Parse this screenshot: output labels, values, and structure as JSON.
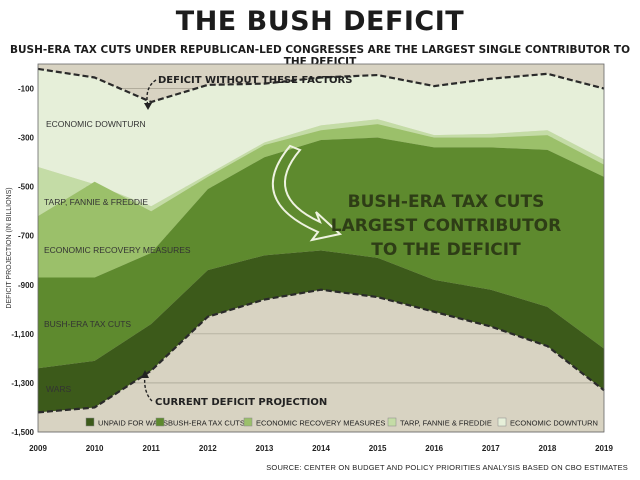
{
  "chart_data": {
    "type": "area",
    "title": "THE BUSH DEFICIT",
    "subtitle": "BUSH-ERA TAX CUTS UNDER REPUBLICAN-LED CONGRESSES ARE THE LARGEST SINGLE CONTRIBUTOR TO THE DEFICIT",
    "ylabel": "DEFICIT PROJECTION (IN BILLIONS)",
    "xlabel": "",
    "x": [
      "2009",
      "2010",
      "2011",
      "2012",
      "2013",
      "2014",
      "2015",
      "2016",
      "2017",
      "2018",
      "2019"
    ],
    "ylim": [
      -1500,
      0
    ],
    "yticks": [
      "-100",
      "-300",
      "-500",
      "-700",
      "-900",
      "-1,100",
      "-1,300",
      "-1,500"
    ],
    "ytick_values": [
      -100,
      -300,
      -500,
      -700,
      -900,
      -1100,
      -1300,
      -1500
    ],
    "xticks": [
      "2009",
      "2010",
      "2011",
      "2012",
      "2013",
      "2014",
      "2015",
      "2016",
      "2017",
      "2018",
      "2019"
    ],
    "boundaries": {
      "without_factors": [
        -20,
        -55,
        -155,
        -85,
        -80,
        -55,
        -45,
        -90,
        -60,
        -40,
        -100
      ],
      "economic_downturn_bottom": [
        -420,
        -490,
        -580,
        -450,
        -320,
        -250,
        -225,
        -290,
        -285,
        -270,
        -390
      ],
      "tarp_bottom": [
        -620,
        -480,
        -600,
        -460,
        -330,
        -270,
        -245,
        -300,
        -300,
        -290,
        -410
      ],
      "recovery_bottom": [
        -870,
        -870,
        -770,
        -510,
        -380,
        -310,
        -300,
        -340,
        -340,
        -350,
        -460
      ],
      "tax_cuts_bottom": [
        -1240,
        -1210,
        -1060,
        -840,
        -780,
        -760,
        -790,
        -880,
        -920,
        -990,
        -1160
      ],
      "current_projection": [
        -1420,
        -1400,
        -1250,
        -1030,
        -960,
        -920,
        -950,
        -1010,
        -1070,
        -1150,
        -1330
      ]
    },
    "series": [
      {
        "name": "UNPAID FOR WARS",
        "color": "#3c5a1a"
      },
      {
        "name": "BUSH-ERA TAX CUTS",
        "color": "#5e8a2e"
      },
      {
        "name": "ECONOMIC RECOVERY MEASURES",
        "color": "#9bc06a"
      },
      {
        "name": "TARP, FANNIE & FREDDIE",
        "color": "#c4dca6"
      },
      {
        "name": "ECONOMIC DOWNTURN",
        "color": "#e6efd9"
      }
    ],
    "area_labels": [
      "ECONOMIC DOWNTURN",
      "TARP, FANNIE & FREDDIE",
      "ECONOMIC RECOVERY MEASURES",
      "BUSH-ERA TAX CUTS",
      "WARS"
    ],
    "annotations": {
      "top": "DEFICIT WITHOUT THESE FACTORS",
      "bottom": "CURRENT DEFICIT PROJECTION",
      "highlight": [
        "BUSH-ERA TAX CUTS",
        "LARGEST CONTRIBUTOR",
        "TO THE DEFICIT"
      ]
    },
    "background_color": "#d8d3c2",
    "legend_position": "bottom"
  },
  "source": "SOURCE: CENTER ON BUDGET AND POLICY PRIORITIES ANALYSIS BASED ON CBO ESTIMATES"
}
